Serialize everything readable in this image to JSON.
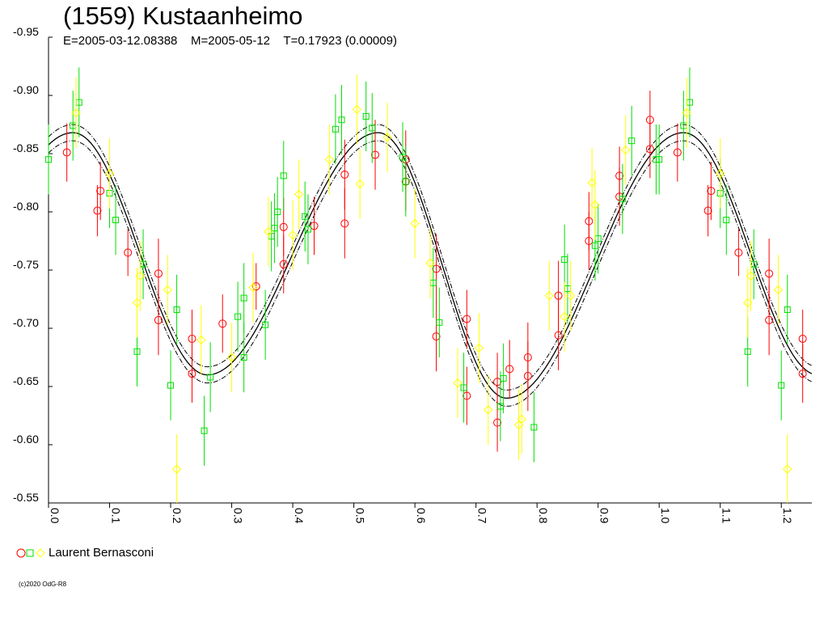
{
  "chart_data": {
    "type": "scatter",
    "title": "(1559) Kustaanheimo",
    "subtitle": "E=2005-03-12.08388    M=2005-05-12    T=0.17923 (0.00009)",
    "xlabel": "",
    "ylabel": "",
    "xlim": [
      0,
      1.25
    ],
    "ylim": [
      -0.95,
      -0.55
    ],
    "y_inverted": true,
    "x_ticks": [
      "0.0",
      "0.1",
      "0.2",
      "0.3",
      "0.4",
      "0.5",
      "0.6",
      "0.7",
      "0.8",
      "0.9",
      "1.0",
      "1.1",
      "1.2"
    ],
    "y_ticks": [
      "-0.95",
      "-0.90",
      "-0.85",
      "-0.80",
      "-0.75",
      "-0.70",
      "-0.65",
      "-0.60",
      "-0.55"
    ],
    "fit_curve": {
      "style": "solid black line with dash-dot envelope lines above and below",
      "period_in_phase": 1.0,
      "approx_extrema": [
        {
          "phase": 0.04,
          "mag": -0.868
        },
        {
          "phase": 0.26,
          "mag": -0.66
        },
        {
          "phase": 0.54,
          "mag": -0.868
        },
        {
          "phase": 0.75,
          "mag": -0.64
        }
      ]
    },
    "series": [
      {
        "name": "Laurent Bernasconi",
        "marker": "circle",
        "color": "#ff0000",
        "points": [
          [
            0.03,
            -0.851,
            0.025
          ],
          [
            0.08,
            -0.801,
            0.022
          ],
          [
            0.085,
            -0.818,
            0.025
          ],
          [
            0.13,
            -0.765,
            0.02
          ],
          [
            0.18,
            -0.747,
            0.03
          ],
          [
            0.18,
            -0.707,
            0.03
          ],
          [
            0.235,
            -0.661,
            0.025
          ],
          [
            0.235,
            -0.691,
            0.025
          ],
          [
            0.285,
            -0.704,
            0.025
          ],
          [
            0.34,
            -0.736,
            0.02
          ],
          [
            0.385,
            -0.755,
            0.025
          ],
          [
            0.385,
            -0.787,
            0.025
          ],
          [
            0.435,
            -0.788,
            0.025
          ],
          [
            0.485,
            -0.79,
            0.03
          ],
          [
            0.485,
            -0.832,
            0.03
          ],
          [
            0.535,
            -0.849,
            0.03
          ],
          [
            0.585,
            -0.826,
            0.025
          ],
          [
            0.585,
            -0.845,
            0.025
          ],
          [
            0.635,
            -0.693,
            0.03
          ],
          [
            0.635,
            -0.751,
            0.03
          ],
          [
            0.685,
            -0.642,
            0.025
          ],
          [
            0.685,
            -0.708,
            0.025
          ],
          [
            0.735,
            -0.619,
            0.025
          ],
          [
            0.735,
            -0.654,
            0.025
          ],
          [
            0.755,
            -0.665,
            0.025
          ],
          [
            0.785,
            -0.659,
            0.03
          ],
          [
            0.785,
            -0.675,
            0.03
          ],
          [
            0.835,
            -0.694,
            0.03
          ],
          [
            0.835,
            -0.728,
            0.03
          ],
          [
            0.885,
            -0.775,
            0.025
          ],
          [
            0.885,
            -0.792,
            0.025
          ],
          [
            0.935,
            -0.813,
            0.025
          ],
          [
            0.935,
            -0.831,
            0.025
          ],
          [
            0.985,
            -0.854,
            0.025
          ],
          [
            0.985,
            -0.879,
            0.025
          ],
          [
            1.03,
            -0.851,
            0.025
          ],
          [
            1.08,
            -0.801,
            0.022
          ],
          [
            1.085,
            -0.818,
            0.025
          ],
          [
            1.13,
            -0.765,
            0.02
          ],
          [
            1.18,
            -0.747,
            0.03
          ],
          [
            1.18,
            -0.707,
            0.03
          ],
          [
            1.235,
            -0.661,
            0.025
          ],
          [
            1.235,
            -0.691,
            0.025
          ]
        ]
      },
      {
        "name": "Laurent Bernasconi",
        "marker": "square",
        "color": "#00e000",
        "points": [
          [
            0.0,
            -0.845,
            0.03
          ],
          [
            0.04,
            -0.874,
            0.03
          ],
          [
            0.05,
            -0.894,
            0.03
          ],
          [
            0.1,
            -0.816,
            0.03
          ],
          [
            0.11,
            -0.793,
            0.03
          ],
          [
            0.145,
            -0.68,
            0.03
          ],
          [
            0.155,
            -0.755,
            0.03
          ],
          [
            0.2,
            -0.651,
            0.03
          ],
          [
            0.21,
            -0.716,
            0.03
          ],
          [
            0.255,
            -0.612,
            0.03
          ],
          [
            0.265,
            -0.658,
            0.03
          ],
          [
            0.31,
            -0.71,
            0.03
          ],
          [
            0.32,
            -0.675,
            0.03
          ],
          [
            0.32,
            -0.726,
            0.03
          ],
          [
            0.355,
            -0.703,
            0.03
          ],
          [
            0.365,
            -0.779,
            0.03
          ],
          [
            0.37,
            -0.786,
            0.03
          ],
          [
            0.375,
            -0.8,
            0.03
          ],
          [
            0.385,
            -0.831,
            0.03
          ],
          [
            0.42,
            -0.796,
            0.03
          ],
          [
            0.425,
            -0.785,
            0.03
          ],
          [
            0.47,
            -0.871,
            0.03
          ],
          [
            0.48,
            -0.879,
            0.03
          ],
          [
            0.52,
            -0.882,
            0.03
          ],
          [
            0.53,
            -0.872,
            0.03
          ],
          [
            0.58,
            -0.847,
            0.03
          ],
          [
            0.585,
            -0.826,
            0.03
          ],
          [
            0.63,
            -0.739,
            0.03
          ],
          [
            0.64,
            -0.705,
            0.03
          ],
          [
            0.68,
            -0.649,
            0.03
          ],
          [
            0.74,
            -0.633,
            0.03
          ],
          [
            0.745,
            -0.657,
            0.03
          ],
          [
            0.795,
            -0.615,
            0.03
          ],
          [
            0.845,
            -0.759,
            0.03
          ],
          [
            0.85,
            -0.734,
            0.03
          ],
          [
            0.895,
            -0.771,
            0.03
          ],
          [
            0.9,
            -0.777,
            0.03
          ],
          [
            0.94,
            -0.811,
            0.03
          ],
          [
            0.955,
            -0.861,
            0.03
          ],
          [
            0.995,
            -0.845,
            0.03
          ],
          [
            1.0,
            -0.845,
            0.03
          ],
          [
            1.04,
            -0.874,
            0.03
          ],
          [
            1.05,
            -0.894,
            0.03
          ],
          [
            1.1,
            -0.816,
            0.03
          ],
          [
            1.11,
            -0.793,
            0.03
          ],
          [
            1.145,
            -0.68,
            0.03
          ],
          [
            1.155,
            -0.755,
            0.03
          ],
          [
            1.2,
            -0.651,
            0.03
          ],
          [
            1.21,
            -0.716,
            0.03
          ]
        ]
      },
      {
        "name": "Laurent Bernasconi",
        "marker": "diamond",
        "color": "#ffff00",
        "points": [
          [
            0.045,
            -0.885,
            0.03
          ],
          [
            0.1,
            -0.833,
            0.03
          ],
          [
            0.145,
            -0.722,
            0.03
          ],
          [
            0.15,
            -0.745,
            0.03
          ],
          [
            0.195,
            -0.733,
            0.03
          ],
          [
            0.21,
            -0.579,
            0.03
          ],
          [
            0.25,
            -0.69,
            0.03
          ],
          [
            0.3,
            -0.675,
            0.03
          ],
          [
            0.335,
            -0.735,
            0.03
          ],
          [
            0.36,
            -0.783,
            0.03
          ],
          [
            0.4,
            -0.78,
            0.03
          ],
          [
            0.41,
            -0.815,
            0.03
          ],
          [
            0.46,
            -0.845,
            0.03
          ],
          [
            0.505,
            -0.888,
            0.03
          ],
          [
            0.51,
            -0.824,
            0.03
          ],
          [
            0.555,
            -0.864,
            0.03
          ],
          [
            0.6,
            -0.79,
            0.03
          ],
          [
            0.625,
            -0.756,
            0.03
          ],
          [
            0.67,
            -0.653,
            0.03
          ],
          [
            0.705,
            -0.683,
            0.03
          ],
          [
            0.72,
            -0.63,
            0.03
          ],
          [
            0.77,
            -0.617,
            0.03
          ],
          [
            0.775,
            -0.622,
            0.03
          ],
          [
            0.82,
            -0.728,
            0.03
          ],
          [
            0.845,
            -0.71,
            0.03
          ],
          [
            0.855,
            -0.728,
            0.03
          ],
          [
            0.89,
            -0.825,
            0.03
          ],
          [
            0.895,
            -0.806,
            0.03
          ],
          [
            0.945,
            -0.853,
            0.03
          ],
          [
            1.045,
            -0.885,
            0.03
          ],
          [
            1.1,
            -0.833,
            0.03
          ],
          [
            1.145,
            -0.722,
            0.03
          ],
          [
            1.15,
            -0.745,
            0.03
          ],
          [
            1.195,
            -0.733,
            0.03
          ],
          [
            1.21,
            -0.579,
            0.03
          ]
        ]
      }
    ]
  },
  "legend": {
    "label": "Laurent Bernasconi",
    "colors": [
      "#ff0000",
      "#00e000",
      "#ffff00"
    ]
  },
  "copyright": "(c)2020 OdG-R8"
}
